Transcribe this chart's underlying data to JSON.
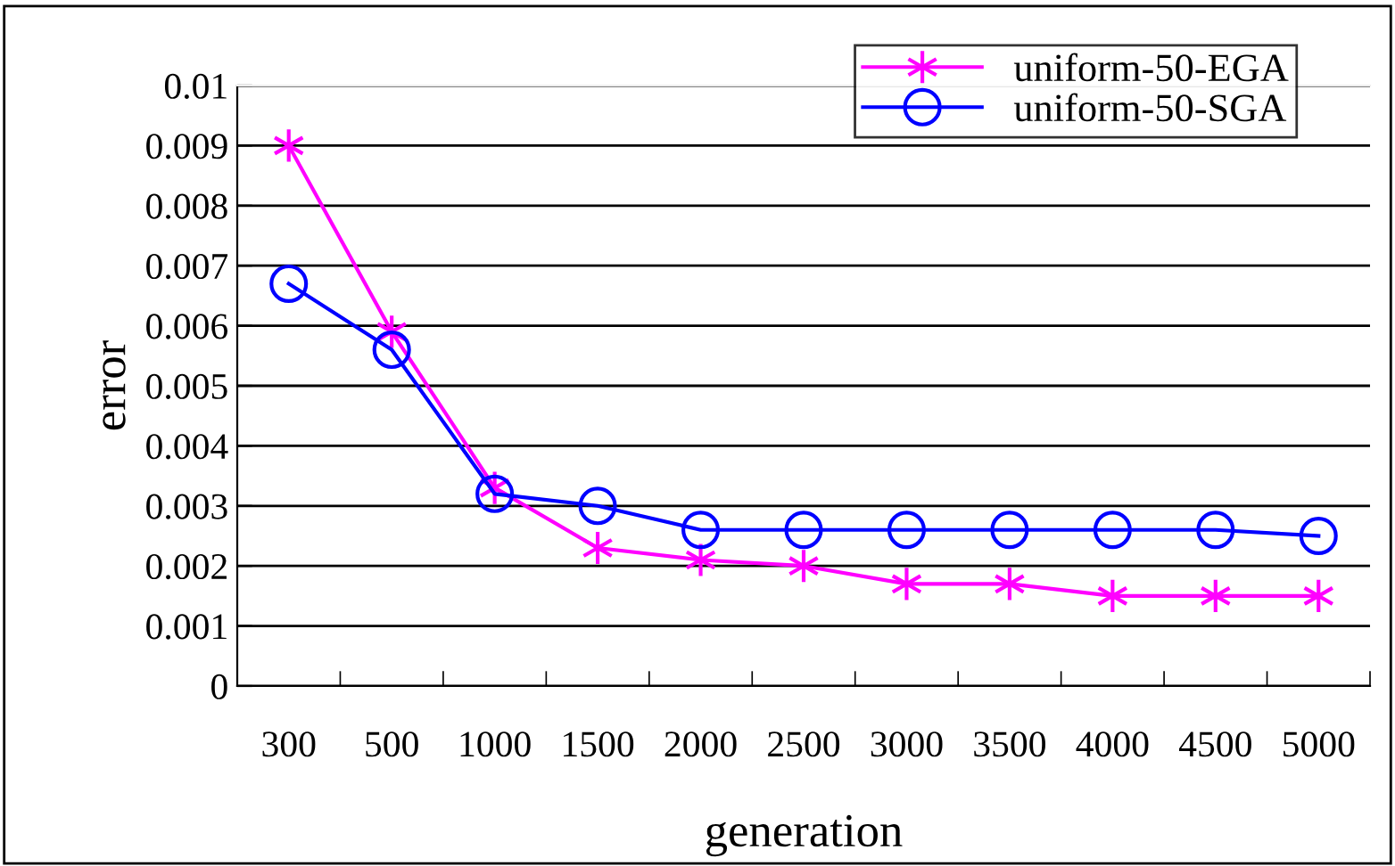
{
  "chart_data": {
    "type": "line",
    "xlabel": "generation",
    "ylabel": "error",
    "categories": [
      "300",
      "500",
      "1000",
      "1500",
      "2000",
      "2500",
      "3000",
      "3500",
      "4000",
      "4500",
      "5000"
    ],
    "series": [
      {
        "name": "uniform-50-EGA",
        "color": "#ff00ff",
        "marker": "cross",
        "values": [
          0.009,
          0.0059,
          0.0033,
          0.0023,
          0.0021,
          0.002,
          0.0017,
          0.0017,
          0.0015,
          0.0015,
          0.0015
        ]
      },
      {
        "name": "uniform-50-SGA",
        "color": "#0000ff",
        "marker": "circle",
        "values": [
          0.0067,
          0.0056,
          0.0032,
          0.003,
          0.0026,
          0.0026,
          0.0026,
          0.0026,
          0.0026,
          0.0026,
          0.0025
        ]
      }
    ],
    "ylim": [
      0,
      0.01
    ],
    "yticks": [
      0,
      0.001,
      0.002,
      0.003,
      0.004,
      0.005,
      0.006,
      0.007,
      0.008,
      0.009,
      0.01
    ],
    "grid": "y",
    "legend": "top right",
    "line_style": "solid"
  }
}
